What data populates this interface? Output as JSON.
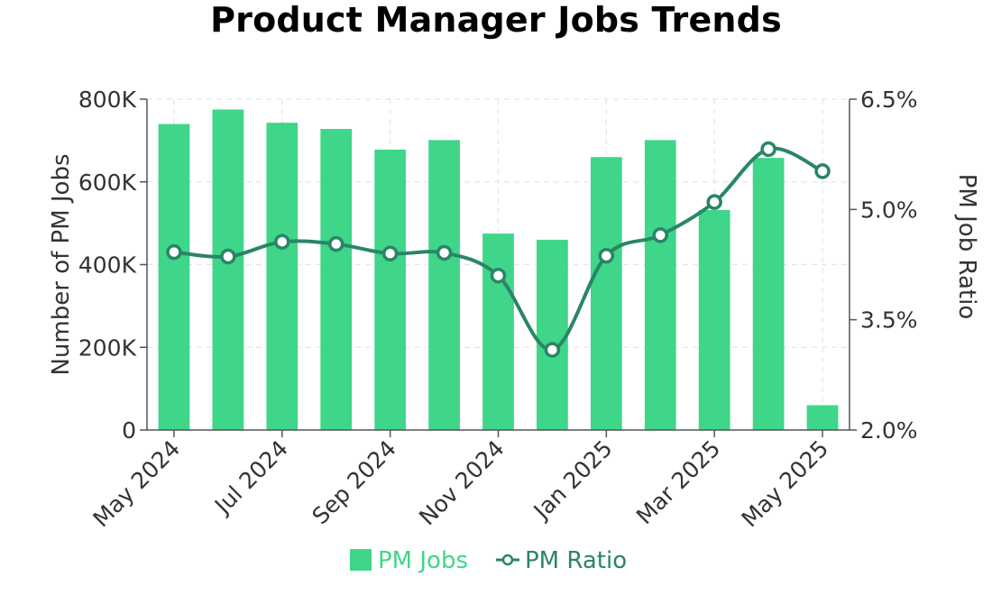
{
  "chart_data": {
    "type": "bar",
    "title": "Product Manager Jobs Trends",
    "x": [
      "May 2024",
      "Jun 2024",
      "Jul 2024",
      "Aug 2024",
      "Sep 2024",
      "Oct 2024",
      "Nov 2024",
      "Dec 2024",
      "Jan 2025",
      "Feb 2025",
      "Mar 2025",
      "Apr 2025",
      "May 2025"
    ],
    "x_tick_labels": [
      "May 2024",
      "Jul 2024",
      "Sep 2024",
      "Nov 2024",
      "Jan 2025",
      "Mar 2025",
      "May 2025"
    ],
    "series": [
      {
        "name": "PM Jobs",
        "type": "bar",
        "axis": "left",
        "values": [
          740000,
          775000,
          743000,
          728000,
          678000,
          701000,
          475000,
          460000,
          660000,
          701000,
          532000,
          658000,
          60000
        ]
      },
      {
        "name": "PM Ratio",
        "type": "line",
        "axis": "right",
        "values": [
          4.42,
          4.36,
          4.56,
          4.53,
          4.4,
          4.41,
          4.1,
          3.09,
          4.37,
          4.65,
          5.1,
          5.82,
          5.52
        ]
      }
    ],
    "y_left": {
      "label": "Number of PM Jobs",
      "lim": [
        0,
        800000
      ],
      "ticks": [
        0,
        200000,
        400000,
        600000,
        800000
      ],
      "tick_labels": [
        "0",
        "200K",
        "400K",
        "600K",
        "800K"
      ]
    },
    "y_right": {
      "label": "PM Job Ratio",
      "lim": [
        2.0,
        6.5
      ],
      "ticks": [
        2.0,
        3.5,
        5.0,
        6.5
      ],
      "tick_labels": [
        "2.0%",
        "3.5%",
        "5.0%",
        "6.5%"
      ]
    },
    "grid": true,
    "legend_position": "bottom",
    "colors": {
      "bars": "#3fd68a",
      "line": "#2a8566",
      "legend_bar_text": "#3fd68a",
      "legend_line_text": "#2a8566",
      "grid": "#e6e6e6",
      "axis": "#555555"
    }
  }
}
